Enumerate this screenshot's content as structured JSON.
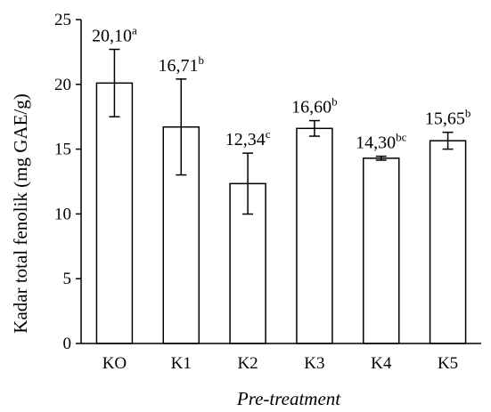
{
  "chart_data": {
    "type": "bar",
    "title": "",
    "xlabel": "Pre-treatment",
    "ylabel": "Kadar total fenolik (mg GAE/g)",
    "ylim": [
      0,
      25
    ],
    "yticks": [
      "0",
      "5",
      "10",
      "15",
      "20",
      "25"
    ],
    "categories": [
      "KO",
      "K1",
      "K2",
      "K3",
      "K4",
      "K5"
    ],
    "values": [
      20.1,
      16.71,
      12.34,
      16.6,
      14.3,
      15.65
    ],
    "errors": [
      2.6,
      3.7,
      2.35,
      0.6,
      0.15,
      0.65
    ],
    "value_labels": [
      "20,10",
      "16,71",
      "12,34",
      "16,60",
      "14,30",
      "15,65"
    ],
    "superscripts": [
      "a",
      "b",
      "c",
      "b",
      "bc",
      "b"
    ],
    "grid": false,
    "legend": "none",
    "colors": {
      "bar_fill": "#ffffff",
      "bar_stroke": "#000000",
      "axis": "#000000"
    }
  }
}
